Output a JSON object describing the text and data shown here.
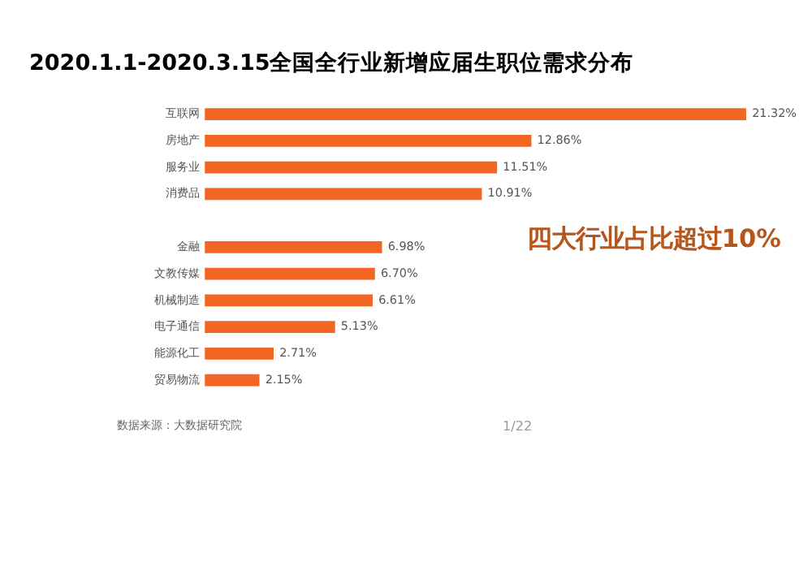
{
  "chart_data": {
    "type": "bar",
    "orientation": "horizontal",
    "title": "2020.1.1-2020.3.15全国全行业新增应届生职位需求分布",
    "categories": [
      "互联网",
      "房地产",
      "服务业",
      "消费品",
      null,
      "金融",
      "文教传媒",
      "机械制造",
      "电子通信",
      "能源化工",
      "贸易物流"
    ],
    "values": [
      21.32,
      12.86,
      11.51,
      10.91,
      null,
      6.98,
      6.7,
      6.61,
      5.13,
      2.71,
      2.15
    ],
    "value_labels": [
      "21.32%",
      "12.86%",
      "11.51%",
      "10.91%",
      null,
      "6.98%",
      "6.70%",
      "6.61%",
      "5.13%",
      "2.71%",
      "2.15%"
    ],
    "color": "#f26522",
    "annotations": [
      "四大行业占比超过10%",
      "数据来源：大数据研究院",
      "1/22"
    ]
  }
}
